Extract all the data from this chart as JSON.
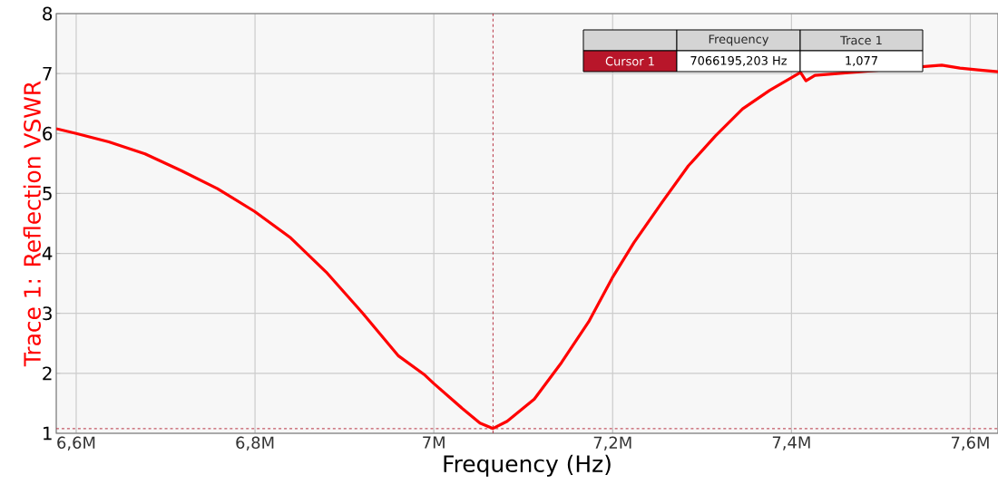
{
  "chart_data": {
    "type": "line",
    "xlabel": "Frequency (Hz)",
    "ylabel": "Trace 1: Reflection VSWR",
    "xlim": [
      6577700,
      7631000
    ],
    "ylim": [
      1,
      8
    ],
    "xticks": [
      {
        "value": 6600000,
        "label": "6,6M"
      },
      {
        "value": 6800000,
        "label": "6,8M"
      },
      {
        "value": 7000000,
        "label": "7M"
      },
      {
        "value": 7200000,
        "label": "7,2M"
      },
      {
        "value": 7400000,
        "label": "7,4M"
      },
      {
        "value": 7600000,
        "label": "7,6M"
      }
    ],
    "yticks": [
      1,
      2,
      3,
      4,
      5,
      6,
      7,
      8
    ],
    "grid": true,
    "marker": "none",
    "line_style": "solid",
    "series": [
      {
        "color": "#ff0000",
        "x": [
          6577700,
          6600000,
          6636500,
          6677000,
          6717500,
          6758000,
          6799500,
          6839000,
          6879500,
          6920000,
          6960500,
          6990000,
          7000000,
          7031400,
          7051600,
          7066195,
          7082000,
          7112400,
          7142800,
          7173200,
          7199500,
          7223800,
          7254200,
          7284600,
          7315000,
          7345300,
          7375700,
          7410100,
          7416200,
          7426300,
          7456700,
          7487100,
          7527600,
          7568100,
          7588400,
          7608600,
          7631000
        ],
        "values": [
          6.08,
          6.0,
          5.86,
          5.66,
          5.38,
          5.08,
          4.7,
          4.27,
          3.69,
          3.01,
          2.29,
          1.97,
          1.83,
          1.42,
          1.17,
          1.08,
          1.2,
          1.57,
          2.18,
          2.86,
          3.59,
          4.18,
          4.83,
          5.46,
          5.96,
          6.41,
          6.72,
          7.02,
          6.88,
          6.97,
          null,
          null,
          null,
          7.14,
          7.09,
          7.06,
          7.03
        ]
      }
    ],
    "ref_lines": [
      {
        "axis": "x",
        "value": 7066195.203,
        "color": "#b01c2e",
        "line_style": "dashed"
      },
      {
        "axis": "y",
        "value": 1.077,
        "color": "#b01c2e",
        "line_style": "dashed"
      }
    ],
    "annotations": [
      "Frequency",
      "Trace 1",
      "Cursor 1",
      "7066195,203 Hz",
      "1,077"
    ]
  }
}
